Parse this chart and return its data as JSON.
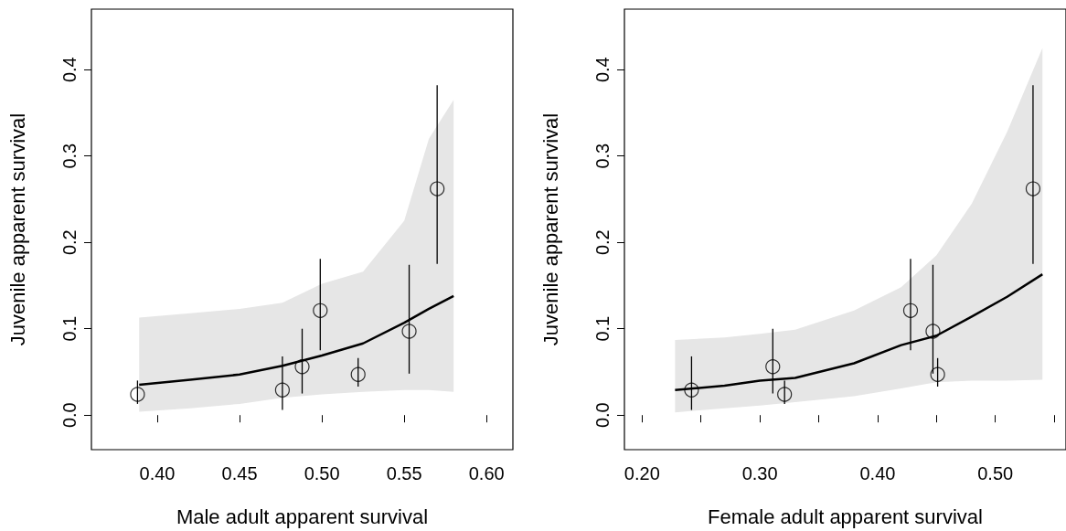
{
  "chart_data": [
    {
      "type": "scatter",
      "xlabel": "Male adult apparent survival",
      "ylabel": "Juvenile apparent survival",
      "marker": "circle",
      "grid": false,
      "xlim": [
        0.36,
        0.616
      ],
      "xticks": [
        {
          "value": 0.4,
          "label": "0.40"
        },
        {
          "value": 0.45,
          "label": "0.45"
        },
        {
          "value": 0.5,
          "label": "0.50"
        },
        {
          "value": 0.55,
          "label": "0.55"
        },
        {
          "value": 0.6,
          "label": "0.60"
        }
      ],
      "ylim": [
        -0.04,
        0.47
      ],
      "yticks": [
        {
          "value": 0,
          "label": "0.0"
        },
        {
          "value": 0.1,
          "label": "0.1"
        },
        {
          "value": 0.2,
          "label": "0.2"
        },
        {
          "value": 0.3,
          "label": "0.3"
        },
        {
          "value": 0.4,
          "label": "0.4"
        }
      ],
      "series": [
        {
          "type": "line",
          "color": "#000000",
          "marker": "none",
          "x": [
            0.389,
            0.42,
            0.45,
            0.476,
            0.5,
            0.525,
            0.55,
            0.565,
            0.58
          ],
          "values": [
            0.035,
            0.041,
            0.047,
            0.057,
            0.069,
            0.083,
            0.107,
            0.123,
            0.138
          ],
          "lower": [
            0.004,
            0.008,
            0.013,
            0.02,
            0.024,
            0.027,
            0.029,
            0.029,
            0.027
          ],
          "upper": [
            0.113,
            0.118,
            0.123,
            0.13,
            0.152,
            0.166,
            0.225,
            0.32,
            0.365
          ]
        },
        {
          "color": "#000000",
          "x": [
            0.388,
            0.476,
            0.488,
            0.499,
            0.522,
            0.553,
            0.57
          ],
          "values": [
            0.024,
            0.029,
            0.056,
            0.121,
            0.047,
            0.097,
            0.262
          ],
          "errors": [
            [
              0.013,
              0.04
            ],
            [
              0.006,
              0.068
            ],
            [
              0.025,
              0.1
            ],
            [
              0.075,
              0.181
            ],
            [
              0.033,
              0.066
            ],
            [
              0.048,
              0.174
            ],
            [
              0.175,
              0.382
            ]
          ]
        }
      ]
    },
    {
      "type": "scatter",
      "xlabel": "Female adult apparent survival",
      "ylabel": "Juvenile apparent survival",
      "marker": "circle",
      "grid": false,
      "xlim": [
        0.185,
        0.56
      ],
      "xticks": [
        {
          "value": 0.2,
          "label": "0.20"
        },
        {
          "value": 0.25,
          "label": null
        },
        {
          "value": 0.3,
          "label": "0.30"
        },
        {
          "value": 0.35,
          "label": null
        },
        {
          "value": 0.4,
          "label": "0.40"
        },
        {
          "value": 0.45,
          "label": null
        },
        {
          "value": 0.5,
          "label": "0.50"
        },
        {
          "value": 0.55,
          "label": null
        }
      ],
      "ylim": [
        -0.04,
        0.47
      ],
      "yticks": [
        {
          "value": 0,
          "label": "0.0"
        },
        {
          "value": 0.1,
          "label": "0.1"
        },
        {
          "value": 0.2,
          "label": "0.2"
        },
        {
          "value": 0.3,
          "label": "0.3"
        },
        {
          "value": 0.4,
          "label": "0.4"
        }
      ],
      "series": [
        {
          "type": "line",
          "color": "#000000",
          "marker": "none",
          "x": [
            0.228,
            0.27,
            0.3,
            0.33,
            0.38,
            0.42,
            0.45,
            0.48,
            0.51,
            0.54
          ],
          "values": [
            0.029,
            0.034,
            0.04,
            0.043,
            0.06,
            0.081,
            0.092,
            0.114,
            0.137,
            0.163
          ],
          "lower": [
            0.003,
            0.008,
            0.011,
            0.015,
            0.022,
            0.031,
            0.038,
            0.04,
            0.04,
            0.041
          ],
          "upper": [
            0.087,
            0.09,
            0.094,
            0.099,
            0.121,
            0.148,
            0.185,
            0.245,
            0.328,
            0.425
          ]
        },
        {
          "color": "#000000",
          "x": [
            0.242,
            0.311,
            0.321,
            0.428,
            0.447,
            0.451,
            0.532
          ],
          "values": [
            0.029,
            0.056,
            0.024,
            0.121,
            0.097,
            0.047,
            0.262
          ],
          "errors": [
            [
              0.006,
              0.068
            ],
            [
              0.025,
              0.1
            ],
            [
              0.013,
              0.04
            ],
            [
              0.075,
              0.181
            ],
            [
              0.048,
              0.174
            ],
            [
              0.033,
              0.066
            ],
            [
              0.175,
              0.382
            ]
          ]
        }
      ]
    }
  ]
}
